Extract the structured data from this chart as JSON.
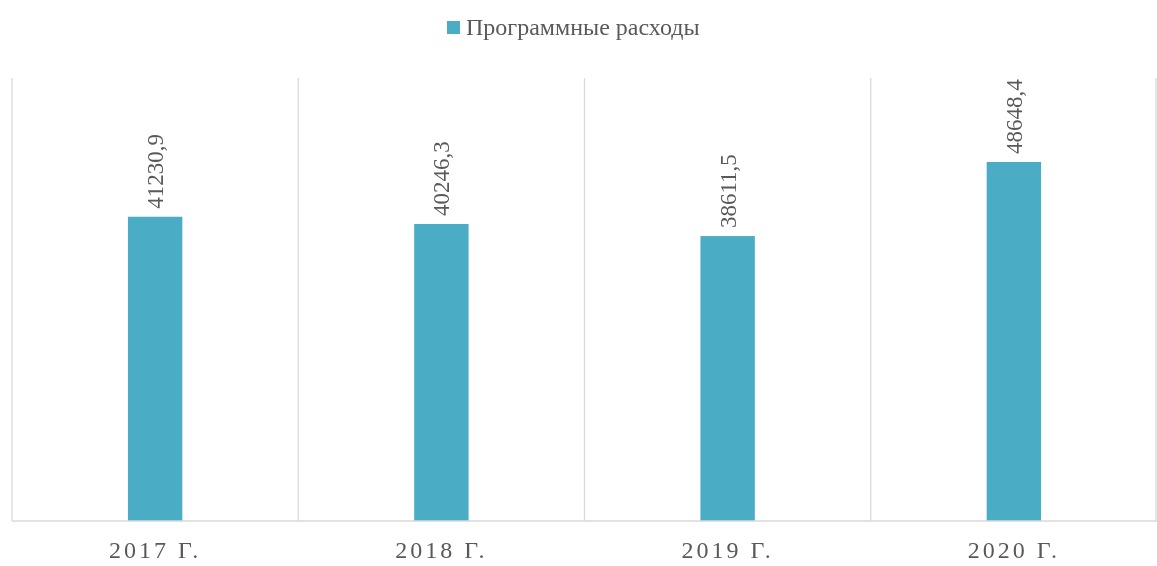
{
  "chart_data": {
    "type": "bar",
    "categories": [
      "2017 Г.",
      "2018 Г.",
      "2019 Г.",
      "2020 Г."
    ],
    "series": [
      {
        "name": "Программные расходы",
        "color": "#4bacc6",
        "values": [
          41230.9,
          40246.3,
          38611.5,
          48648.4
        ],
        "value_labels": [
          "41230,9",
          "40246,3",
          "38611,5",
          "48648,4"
        ]
      }
    ],
    "tick_labels": "x",
    "grid": "x",
    "legend": "top"
  }
}
